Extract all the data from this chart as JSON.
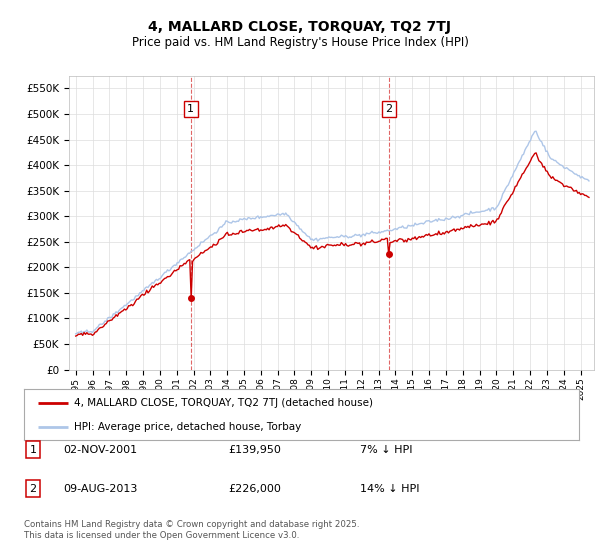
{
  "title": "4, MALLARD CLOSE, TORQUAY, TQ2 7TJ",
  "subtitle": "Price paid vs. HM Land Registry's House Price Index (HPI)",
  "ylabel_ticks": [
    "£0",
    "£50K",
    "£100K",
    "£150K",
    "£200K",
    "£250K",
    "£300K",
    "£350K",
    "£400K",
    "£450K",
    "£500K",
    "£550K"
  ],
  "ytick_values": [
    0,
    50000,
    100000,
    150000,
    200000,
    250000,
    300000,
    350000,
    400000,
    450000,
    500000,
    550000
  ],
  "ylim": [
    0,
    575000
  ],
  "hpi_color": "#aec6e8",
  "price_color": "#cc0000",
  "vline_color": "#cc0000",
  "marker1_year": 2001.84,
  "marker2_year": 2013.6,
  "marker1_price": 139950,
  "marker2_price": 226000,
  "legend_line1": "4, MALLARD CLOSE, TORQUAY, TQ2 7TJ (detached house)",
  "legend_line2": "HPI: Average price, detached house, Torbay",
  "table_row1": [
    "1",
    "02-NOV-2001",
    "£139,950",
    "7% ↓ HPI"
  ],
  "table_row2": [
    "2",
    "09-AUG-2013",
    "£226,000",
    "14% ↓ HPI"
  ],
  "footnote": "Contains HM Land Registry data © Crown copyright and database right 2025.\nThis data is licensed under the Open Government Licence v3.0.",
  "bg_color": "#ffffff",
  "plot_bg_color": "#ffffff",
  "grid_color": "#dddddd"
}
